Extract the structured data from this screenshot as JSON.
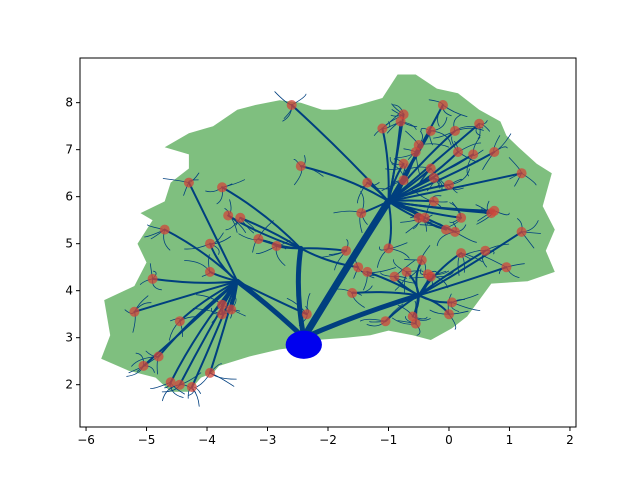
{
  "chart_data": {
    "type": "scatter",
    "title": "",
    "xlabel": "",
    "ylabel": "",
    "xlim": [
      -6.1,
      2.1
    ],
    "ylim": [
      1.1,
      8.95
    ],
    "xticks": [
      -6,
      -5,
      -4,
      -3,
      -2,
      -1,
      0,
      1,
      2
    ],
    "yticks": [
      2,
      3,
      4,
      5,
      6,
      7,
      8
    ],
    "xtick_labels": [
      "−6",
      "−5",
      "−4",
      "−3",
      "−2",
      "−1",
      "0",
      "1",
      "2"
    ],
    "ytick_labels": [
      "2",
      "3",
      "4",
      "5",
      "6",
      "7",
      "8"
    ],
    "grid": false,
    "colors": {
      "region": "#7fbf7f",
      "dendrites": "#003f7f",
      "soma": "#0000ee",
      "points": "#d0453a"
    },
    "region_outline": [
      [
        -5.75,
        2.55
      ],
      [
        -5.6,
        3.05
      ],
      [
        -5.7,
        3.8
      ],
      [
        -5.2,
        4.1
      ],
      [
        -5.0,
        4.6
      ],
      [
        -5.15,
        5.0
      ],
      [
        -4.9,
        5.5
      ],
      [
        -5.1,
        5.65
      ],
      [
        -4.7,
        5.9
      ],
      [
        -4.6,
        6.3
      ],
      [
        -4.3,
        6.6
      ],
      [
        -4.3,
        6.9
      ],
      [
        -4.7,
        7.05
      ],
      [
        -4.3,
        7.35
      ],
      [
        -3.9,
        7.5
      ],
      [
        -3.5,
        7.85
      ],
      [
        -3.2,
        7.95
      ],
      [
        -2.8,
        8.05
      ],
      [
        -2.45,
        8.0
      ],
      [
        -2.1,
        7.85
      ],
      [
        -1.85,
        7.85
      ],
      [
        -1.5,
        7.95
      ],
      [
        -1.1,
        8.1
      ],
      [
        -0.85,
        8.6
      ],
      [
        -0.55,
        8.6
      ],
      [
        -0.2,
        8.3
      ],
      [
        0.15,
        8.2
      ],
      [
        0.5,
        7.85
      ],
      [
        0.85,
        7.6
      ],
      [
        0.95,
        7.3
      ],
      [
        1.15,
        7.05
      ],
      [
        1.45,
        6.7
      ],
      [
        1.7,
        6.5
      ],
      [
        1.55,
        5.8
      ],
      [
        1.75,
        5.3
      ],
      [
        1.6,
        4.85
      ],
      [
        1.75,
        4.4
      ],
      [
        1.3,
        4.2
      ],
      [
        0.7,
        4.15
      ],
      [
        0.5,
        3.8
      ],
      [
        0.3,
        3.45
      ],
      [
        0.05,
        3.2
      ],
      [
        -0.3,
        2.95
      ],
      [
        -0.6,
        3.05
      ],
      [
        -1.0,
        3.15
      ],
      [
        -1.3,
        3.05
      ],
      [
        -1.7,
        3.0
      ],
      [
        -2.2,
        2.95
      ],
      [
        -2.5,
        2.8
      ],
      [
        -2.8,
        2.75
      ],
      [
        -3.3,
        2.6
      ],
      [
        -3.8,
        2.4
      ],
      [
        -3.9,
        2.25
      ],
      [
        -4.1,
        2.15
      ],
      [
        -4.3,
        1.85
      ],
      [
        -4.6,
        1.85
      ],
      [
        -4.85,
        2.15
      ],
      [
        -5.3,
        2.3
      ]
    ],
    "soma": {
      "x": -2.4,
      "y": 2.85,
      "rx": 0.3,
      "ry": 0.3
    },
    "points": [
      [
        -2.6,
        7.95
      ],
      [
        -0.1,
        7.95
      ],
      [
        -0.75,
        7.75
      ],
      [
        -0.8,
        7.6
      ],
      [
        -1.1,
        7.45
      ],
      [
        0.5,
        7.55
      ],
      [
        0.1,
        7.4
      ],
      [
        -0.3,
        7.4
      ],
      [
        -0.5,
        7.1
      ],
      [
        -0.55,
        6.95
      ],
      [
        0.15,
        6.95
      ],
      [
        0.4,
        6.9
      ],
      [
        0.75,
        6.95
      ],
      [
        -0.75,
        6.7
      ],
      [
        -0.3,
        6.6
      ],
      [
        -2.45,
        6.65
      ],
      [
        1.2,
        6.5
      ],
      [
        -1.35,
        6.3
      ],
      [
        -0.75,
        6.35
      ],
      [
        -0.25,
        6.4
      ],
      [
        0.0,
        6.25
      ],
      [
        -4.3,
        6.3
      ],
      [
        -3.75,
        6.2
      ],
      [
        -0.25,
        5.9
      ],
      [
        -1.45,
        5.65
      ],
      [
        -0.5,
        5.55
      ],
      [
        -0.4,
        5.55
      ],
      [
        0.2,
        5.55
      ],
      [
        0.7,
        5.65
      ],
      [
        0.75,
        5.7
      ],
      [
        -3.65,
        5.6
      ],
      [
        -3.45,
        5.55
      ],
      [
        -4.7,
        5.3
      ],
      [
        -0.05,
        5.3
      ],
      [
        0.1,
        5.25
      ],
      [
        1.2,
        5.25
      ],
      [
        -3.15,
        5.1
      ],
      [
        -3.95,
        5.0
      ],
      [
        -1.0,
        4.9
      ],
      [
        -1.7,
        4.85
      ],
      [
        0.2,
        4.8
      ],
      [
        0.6,
        4.85
      ],
      [
        -2.85,
        4.95
      ],
      [
        -1.5,
        4.5
      ],
      [
        -1.35,
        4.4
      ],
      [
        -0.9,
        4.3
      ],
      [
        -0.7,
        4.4
      ],
      [
        -0.45,
        4.65
      ],
      [
        -0.35,
        4.35
      ],
      [
        -0.3,
        4.3
      ],
      [
        0.95,
        4.5
      ],
      [
        -3.95,
        4.4
      ],
      [
        -4.9,
        4.25
      ],
      [
        -1.6,
        3.95
      ],
      [
        -3.75,
        3.7
      ],
      [
        -3.6,
        3.6
      ],
      [
        -3.75,
        3.5
      ],
      [
        -2.35,
        3.5
      ],
      [
        -4.45,
        3.35
      ],
      [
        -5.2,
        3.55
      ],
      [
        0.05,
        3.75
      ],
      [
        -0.6,
        3.45
      ],
      [
        0.0,
        3.5
      ],
      [
        -1.05,
        3.35
      ],
      [
        -0.55,
        3.3
      ],
      [
        -4.8,
        2.6
      ],
      [
        -5.05,
        2.4
      ],
      [
        -4.6,
        2.05
      ],
      [
        -4.45,
        2.0
      ],
      [
        -4.25,
        1.95
      ],
      [
        -3.95,
        2.25
      ]
    ]
  }
}
